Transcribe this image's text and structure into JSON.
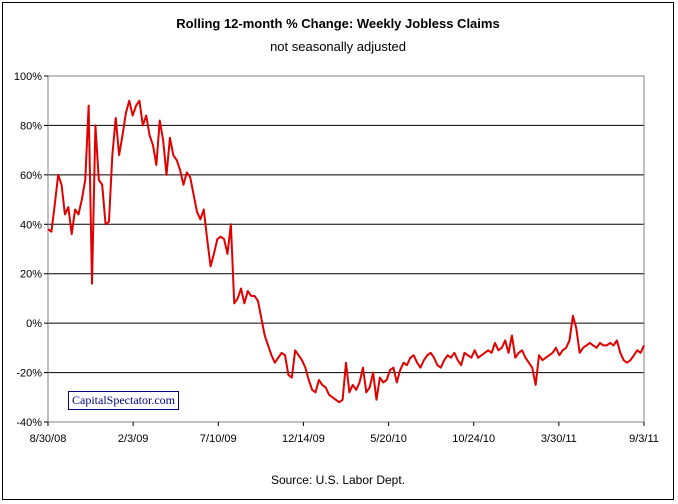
{
  "header": {
    "title": "Rolling 12-month %  Change: Weekly Jobless Claims",
    "subtitle": "not seasonally adjusted"
  },
  "footer": {
    "source": "Source: U.S. Labor Dept."
  },
  "watermark": {
    "text": "CapitalSpectator.com"
  },
  "colors": {
    "line": "#e00000",
    "grid": "#000000",
    "text": "#000000",
    "watermark": "#000080"
  },
  "chart_data": {
    "type": "line",
    "title": "Rolling 12-month %  Change: Weekly Jobless Claims",
    "subtitle": "not seasonally adjusted",
    "xlabel": "",
    "ylabel": "",
    "ylim": [
      -40,
      100
    ],
    "yticks": [
      -40,
      -20,
      0,
      20,
      40,
      60,
      80,
      100
    ],
    "ytick_labels": [
      "-40%",
      "-20%",
      "0%",
      "20%",
      "40%",
      "60%",
      "80%",
      "100%"
    ],
    "xtick_labels": [
      "8/30/08",
      "2/3/09",
      "7/10/09",
      "12/14/09",
      "5/20/10",
      "10/24/10",
      "3/30/11",
      "9/3/11"
    ],
    "grid": "horizontal",
    "legend": "none",
    "series": [
      {
        "values": [
          38,
          37,
          48,
          60,
          56,
          44,
          47,
          36,
          46,
          44,
          50,
          58,
          88,
          16,
          80,
          58,
          56,
          40,
          41,
          68,
          83,
          68,
          76,
          85,
          90,
          84,
          88,
          90,
          80,
          84,
          76,
          72,
          64,
          82,
          74,
          60,
          75,
          68,
          66,
          62,
          56,
          61,
          59,
          52,
          45,
          42,
          46,
          34,
          23,
          28,
          34,
          35,
          34,
          28,
          40,
          8,
          10,
          14,
          8,
          13,
          11,
          11,
          9,
          2,
          -5,
          -9,
          -13,
          -16,
          -14,
          -12,
          -13,
          -21,
          -22,
          -11,
          -13,
          -15,
          -18,
          -23,
          -27,
          -28,
          -23,
          -25,
          -26,
          -29,
          -30,
          -31,
          -32,
          -31,
          -16,
          -28,
          -25,
          -27,
          -24,
          -18,
          -28,
          -26,
          -20,
          -31,
          -22,
          -24,
          -23,
          -19,
          -18,
          -24,
          -19,
          -16,
          -17,
          -14,
          -13,
          -16,
          -18,
          -15,
          -13,
          -12,
          -14,
          -17,
          -18,
          -15,
          -13,
          -14,
          -12,
          -15,
          -17,
          -12,
          -13,
          -14,
          -11,
          -14,
          -13,
          -12,
          -11,
          -12,
          -8,
          -11,
          -10,
          -7,
          -12,
          -5,
          -14,
          -12,
          -11,
          -14,
          -16,
          -18,
          -25,
          -13,
          -15,
          -14,
          -13,
          -12,
          -10,
          -13,
          -11,
          -10,
          -7,
          3,
          -2,
          -12,
          -10,
          -9,
          -8,
          -9,
          -10,
          -8,
          -9,
          -9,
          -8,
          -9,
          -7,
          -12,
          -15,
          -16,
          -15,
          -13,
          -11,
          -12,
          -9
        ]
      }
    ]
  }
}
